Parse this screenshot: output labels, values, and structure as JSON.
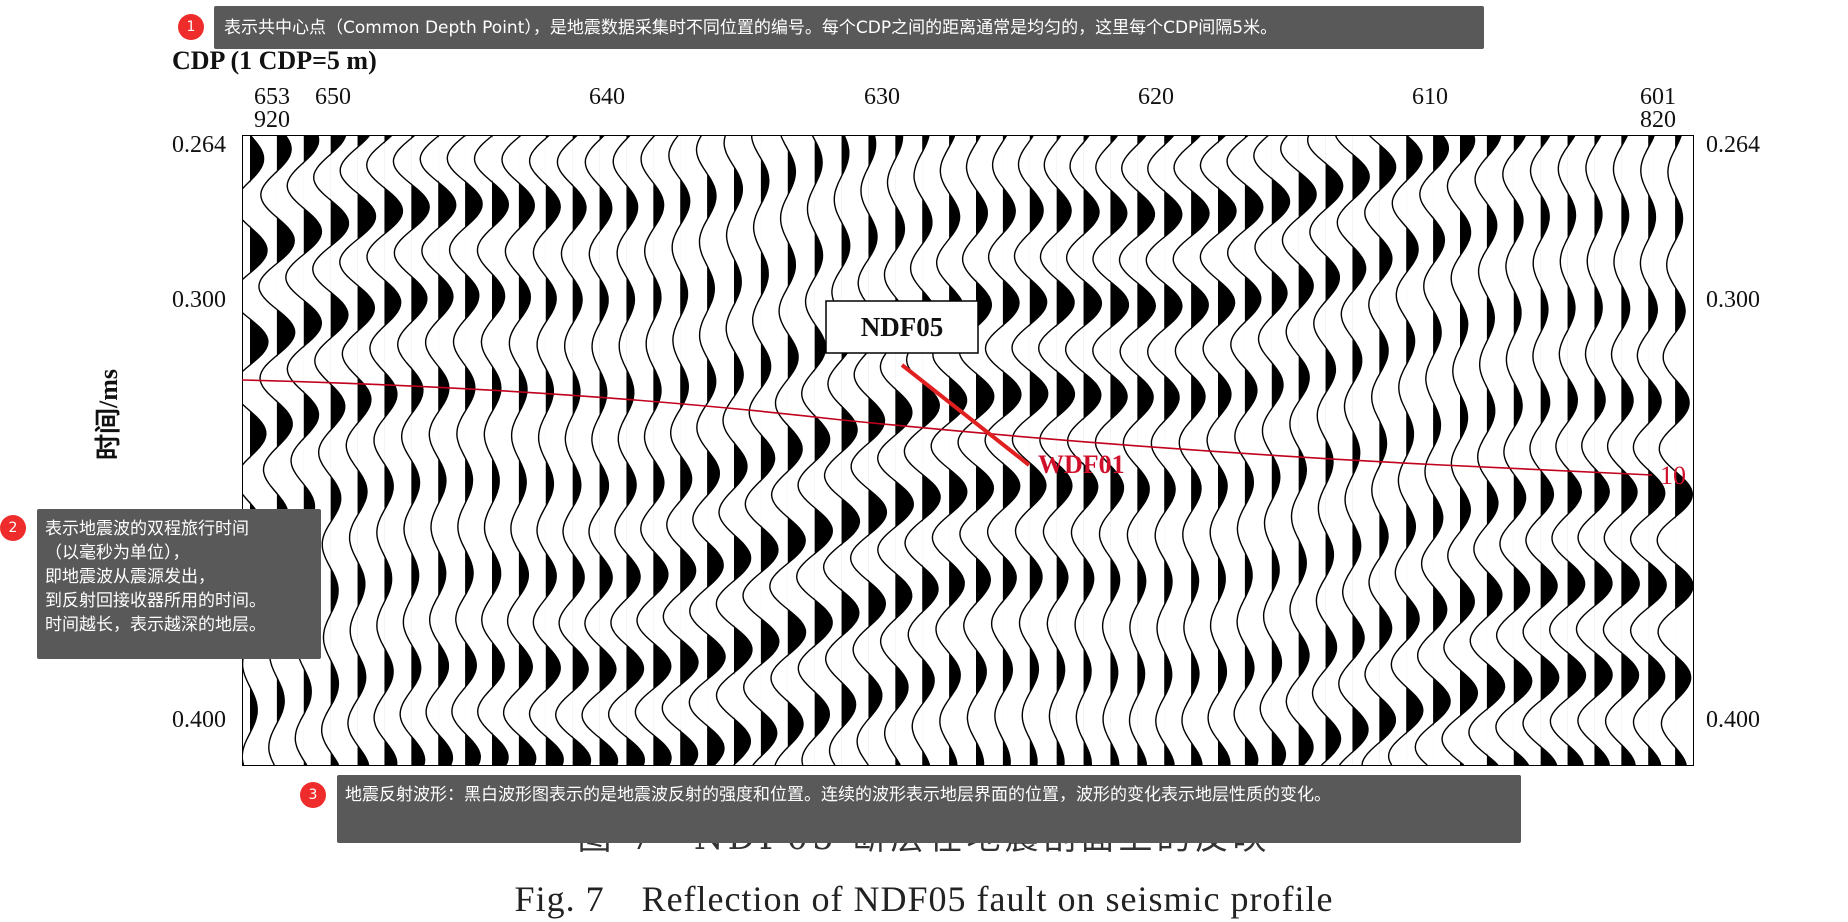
{
  "figure": {
    "cdp_axis_label": "CDP (1 CDP=5 m)",
    "top_ticks": [
      "650",
      "640",
      "630",
      "620",
      "610"
    ],
    "left_end": {
      "top": "653",
      "bottom": "920"
    },
    "right_end": {
      "top": "601",
      "bottom": "820"
    },
    "y_axis_label": "时间/ms",
    "left_time_ticks": [
      "0.264",
      "0.300",
      "0.400"
    ],
    "right_time_ticks": [
      "0.264",
      "0.300",
      "0.400"
    ],
    "fault_label": "NDF05",
    "horizon_label": "WDF01",
    "horizon_end_label": "10",
    "caption_cn": "图 7　NDF05 断层在地震剖面上的反映",
    "caption_en": "Fig. 7　Reflection of NDF05 fault on seismic profile",
    "colors": {
      "fault_line": "#e02020",
      "horizon_line": "#c0001c",
      "wiggle_fill": "#000000"
    }
  },
  "annotations": [
    {
      "num": "1",
      "text": "表示共中心点（Common Depth Point），是地震数据采集时不同位置的编号。每个CDP之间的距离通常是均匀的，这里每个CDP间隔5米。"
    },
    {
      "num": "2",
      "lines": [
        "表示地震波的双程旅行时间",
        "（以毫秒为单位），",
        "即地震波从震源发出，",
        "到反射回接收器所用的时间。",
        "时间越长，表示越深的地层。"
      ]
    },
    {
      "num": "3",
      "text": "地震反射波形：黑白波形图表示的是地震波反射的强度和位置。连续的波形表示地层界面的位置，波形的变化表示地层性质的变化。"
    }
  ]
}
